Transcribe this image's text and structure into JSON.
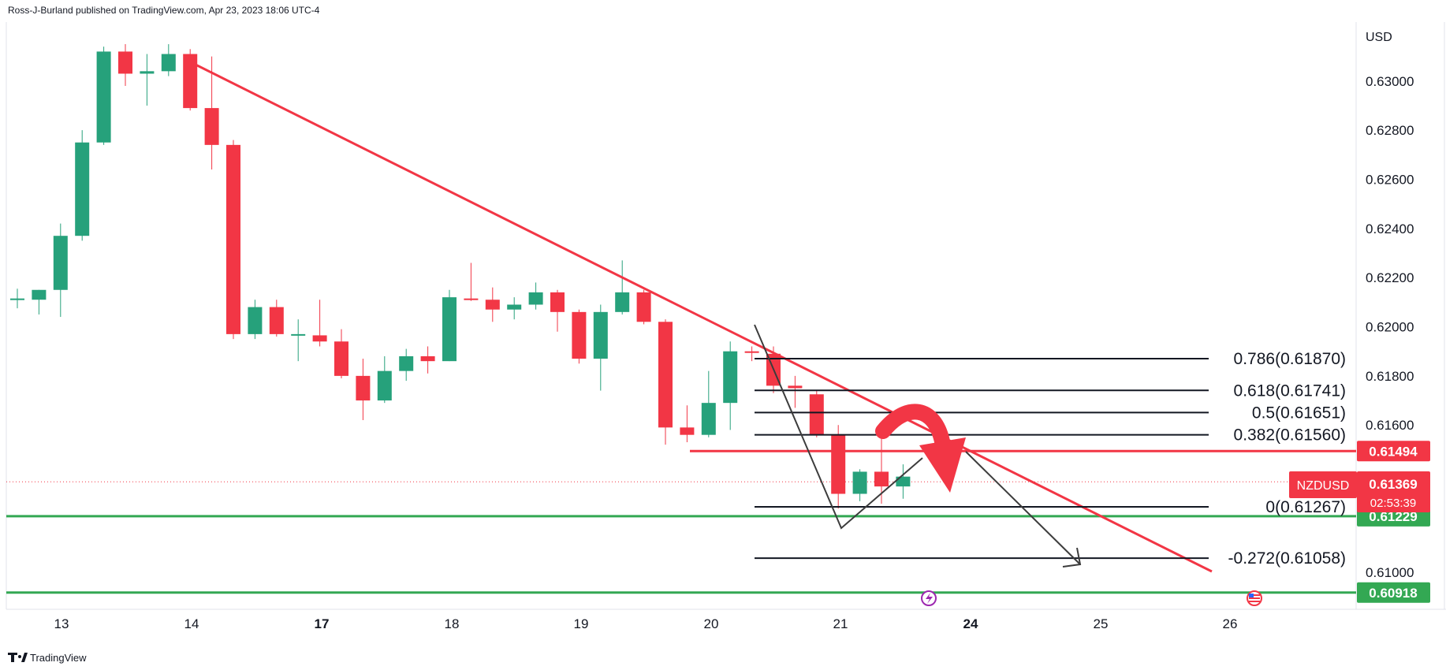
{
  "header": {
    "publish_line": "Ross-J-Burland published on TradingView.com, Apr 23, 2023 18:06 UTC-4"
  },
  "footer": {
    "brand": "TradingView"
  },
  "colors": {
    "up": "#26a17b",
    "down": "#f23645",
    "trendline": "#f23645",
    "support": "#33a853",
    "fib": "#131722",
    "grid_text": "#131722"
  },
  "chart_data": {
    "type": "candlestick",
    "symbol": "NZDUSD",
    "currency": "USD",
    "timeframe": "4h",
    "y_ticks": [
      "0.63000",
      "0.62800",
      "0.62600",
      "0.62400",
      "0.62200",
      "0.62000",
      "0.61800",
      "0.61600",
      "0.61000"
    ],
    "x_ticks": [
      "13",
      "14",
      "17",
      "18",
      "19",
      "20",
      "21",
      "24",
      "25",
      "26"
    ],
    "ylim": [
      0.6085,
      0.6324
    ],
    "candles": [
      {
        "o": 0.62115,
        "h": 0.62155,
        "l": 0.62075,
        "c": 0.62115
      },
      {
        "o": 0.6211,
        "h": 0.6215,
        "l": 0.6205,
        "c": 0.6215
      },
      {
        "o": 0.6215,
        "h": 0.6242,
        "l": 0.6204,
        "c": 0.6237
      },
      {
        "o": 0.6237,
        "h": 0.628,
        "l": 0.6235,
        "c": 0.6275
      },
      {
        "o": 0.6275,
        "h": 0.6314,
        "l": 0.6274,
        "c": 0.6312
      },
      {
        "o": 0.6312,
        "h": 0.6315,
        "l": 0.6298,
        "c": 0.6303
      },
      {
        "o": 0.6303,
        "h": 0.6311,
        "l": 0.629,
        "c": 0.6304
      },
      {
        "o": 0.6304,
        "h": 0.6315,
        "l": 0.6302,
        "c": 0.6311
      },
      {
        "o": 0.6311,
        "h": 0.6313,
        "l": 0.6288,
        "c": 0.6289
      },
      {
        "o": 0.6289,
        "h": 0.631,
        "l": 0.6264,
        "c": 0.6274
      },
      {
        "o": 0.6274,
        "h": 0.6276,
        "l": 0.6195,
        "c": 0.6197
      },
      {
        "o": 0.6197,
        "h": 0.6211,
        "l": 0.6195,
        "c": 0.6208
      },
      {
        "o": 0.6208,
        "h": 0.6211,
        "l": 0.6196,
        "c": 0.6197
      },
      {
        "o": 0.6197,
        "h": 0.6203,
        "l": 0.6186,
        "c": 0.6197
      },
      {
        "o": 0.61965,
        "h": 0.6211,
        "l": 0.6192,
        "c": 0.6194
      },
      {
        "o": 0.6194,
        "h": 0.6199,
        "l": 0.6179,
        "c": 0.618
      },
      {
        "o": 0.618,
        "h": 0.6187,
        "l": 0.6162,
        "c": 0.617
      },
      {
        "o": 0.617,
        "h": 0.6188,
        "l": 0.6169,
        "c": 0.6182
      },
      {
        "o": 0.6182,
        "h": 0.6191,
        "l": 0.6178,
        "c": 0.6188
      },
      {
        "o": 0.6188,
        "h": 0.6192,
        "l": 0.6181,
        "c": 0.6186
      },
      {
        "o": 0.6186,
        "h": 0.6215,
        "l": 0.6186,
        "c": 0.6212
      },
      {
        "o": 0.62115,
        "h": 0.6226,
        "l": 0.62105,
        "c": 0.6211
      },
      {
        "o": 0.6211,
        "h": 0.6216,
        "l": 0.6202,
        "c": 0.6207
      },
      {
        "o": 0.6207,
        "h": 0.6212,
        "l": 0.6203,
        "c": 0.6209
      },
      {
        "o": 0.6209,
        "h": 0.6218,
        "l": 0.6207,
        "c": 0.6214
      },
      {
        "o": 0.6214,
        "h": 0.6215,
        "l": 0.6198,
        "c": 0.6206
      },
      {
        "o": 0.6206,
        "h": 0.6207,
        "l": 0.6185,
        "c": 0.6187
      },
      {
        "o": 0.6187,
        "h": 0.6209,
        "l": 0.6174,
        "c": 0.6206
      },
      {
        "o": 0.6206,
        "h": 0.6227,
        "l": 0.6205,
        "c": 0.6214
      },
      {
        "o": 0.6214,
        "h": 0.6215,
        "l": 0.6201,
        "c": 0.6202
      },
      {
        "o": 0.6202,
        "h": 0.6203,
        "l": 0.6152,
        "c": 0.6159
      },
      {
        "o": 0.6159,
        "h": 0.6168,
        "l": 0.6153,
        "c": 0.6156
      },
      {
        "o": 0.6156,
        "h": 0.6182,
        "l": 0.6155,
        "c": 0.6169
      },
      {
        "o": 0.6169,
        "h": 0.6194,
        "l": 0.6158,
        "c": 0.619
      },
      {
        "o": 0.619,
        "h": 0.6192,
        "l": 0.6186,
        "c": 0.61895
      },
      {
        "o": 0.6189,
        "h": 0.6192,
        "l": 0.6173,
        "c": 0.6176
      },
      {
        "o": 0.6176,
        "h": 0.618,
        "l": 0.6167,
        "c": 0.6175
      },
      {
        "o": 0.61725,
        "h": 0.6174,
        "l": 0.6155,
        "c": 0.6156
      },
      {
        "o": 0.6156,
        "h": 0.616,
        "l": 0.6126,
        "c": 0.6132
      },
      {
        "o": 0.6132,
        "h": 0.6142,
        "l": 0.6129,
        "c": 0.6141
      },
      {
        "o": 0.6141,
        "h": 0.6157,
        "l": 0.6128,
        "c": 0.6135
      },
      {
        "o": 0.6135,
        "h": 0.6144,
        "l": 0.613,
        "c": 0.6139
      }
    ],
    "fib_levels": [
      {
        "label": "0.786(0.61870)",
        "value": 0.6187
      },
      {
        "label": "0.618(0.61741)",
        "value": 0.61741
      },
      {
        "label": "0.5(0.61651)",
        "value": 0.61651
      },
      {
        "label": "0.382(0.61560)",
        "value": 0.6156
      },
      {
        "label": "0(0.61267)",
        "value": 0.61267
      },
      {
        "label": "-0.272(0.61058)",
        "value": 0.61058
      }
    ],
    "price_labels": [
      {
        "label": "0.61494",
        "value": 0.61494,
        "color": "#f23645"
      },
      {
        "label": "0.61229",
        "value": 0.61229,
        "color": "#33a853"
      },
      {
        "label": "0.60918",
        "value": 0.60918,
        "color": "#33a853"
      }
    ],
    "current": {
      "symbol": "NZDUSD",
      "price": "0.61369",
      "countdown": "02:53:39",
      "value": 0.61369
    },
    "horizontal_lines": [
      {
        "value": 0.61494,
        "color": "#f23645"
      },
      {
        "value": 0.61229,
        "color": "#33a853"
      },
      {
        "value": 0.60918,
        "color": "#33a853"
      }
    ],
    "grid": false,
    "legend": "none"
  }
}
